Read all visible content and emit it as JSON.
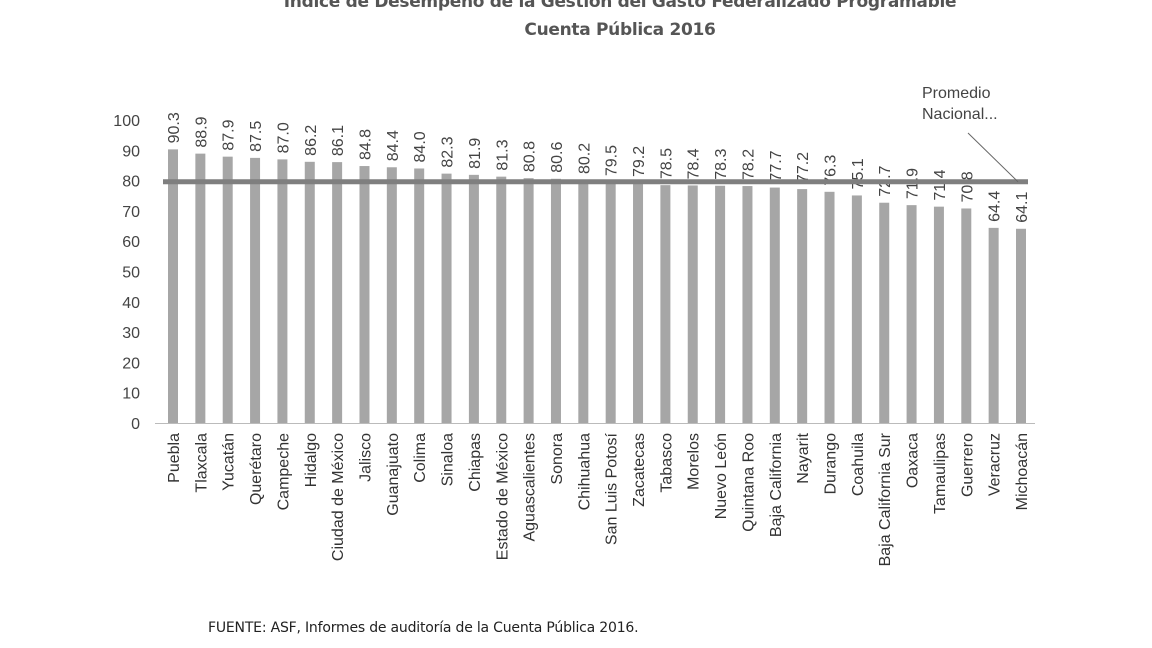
{
  "chart_data": {
    "type": "bar",
    "title": "Índice de Desempeño de la Gestión del Gasto Federalizado Programable",
    "subtitle": "Cuenta Pública 2016",
    "xlabel": "",
    "ylabel": "",
    "ylim": [
      0,
      100
    ],
    "yticks": [
      0,
      10,
      20,
      30,
      40,
      50,
      60,
      70,
      80,
      90,
      100
    ],
    "grid": false,
    "categories": [
      "Puebla",
      "Tlaxcala",
      "Yucatán",
      "Querétaro",
      "Campeche",
      "Hidalgo",
      "Ciudad de México",
      "Jalisco",
      "Guanajuato",
      "Colima",
      "Sinaloa",
      "Chiapas",
      "Estado de México",
      "Aguascalientes",
      "Sonora",
      "Chihuahua",
      "San Luis Potosí",
      "Zacatecas",
      "Tabasco",
      "Morelos",
      "Nuevo León",
      "Quintana Roo",
      "Baja California",
      "Nayarit",
      "Durango",
      "Coahuila",
      "Baja California Sur",
      "Oaxaca",
      "Tamaulipas",
      "Guerrero",
      "Veracruz",
      "Michoacán"
    ],
    "values": [
      90.3,
      88.9,
      87.9,
      87.5,
      87.0,
      86.2,
      86.1,
      84.8,
      84.4,
      84.0,
      82.3,
      81.9,
      81.3,
      80.8,
      80.6,
      80.2,
      79.5,
      79.2,
      78.5,
      78.4,
      78.3,
      78.2,
      77.7,
      77.2,
      76.3,
      75.1,
      72.7,
      71.9,
      71.4,
      70.8,
      64.4,
      64.1
    ],
    "value_labels": [
      "90.3",
      "88.9",
      "87.9",
      "87.5",
      "87.0",
      "86.2",
      "86.1",
      "84.8",
      "84.4",
      "84.0",
      "82.3",
      "81.9",
      "81.3",
      "80.8",
      "80.6",
      "80.2",
      "79.5",
      "79.2",
      "78.5",
      "78.4",
      "78.3",
      "78.2",
      "77.7",
      "77.2",
      "76.3",
      "75.1",
      "72.7",
      "71.9",
      "71.4",
      "70.8",
      "64.4",
      "64.1"
    ],
    "reference_line": {
      "name": "Promedio Nacional...",
      "value": 79.6
    },
    "bar_color": "#a6a6a6",
    "line_color": "#7f7f7f"
  },
  "source": "FUENTE: ASF, Informes de auditoría de la Cuenta Pública 2016."
}
